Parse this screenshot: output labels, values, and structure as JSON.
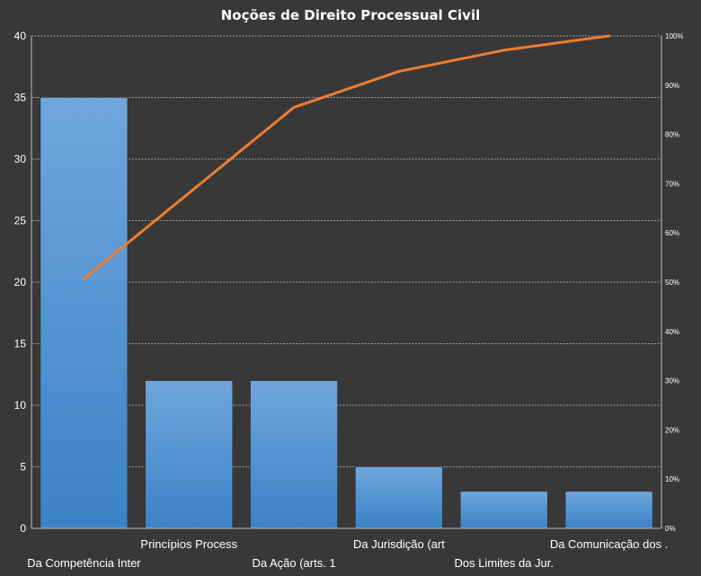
{
  "chart_data": {
    "type": "pareto",
    "title": "Noções de Direito  Processual  Civil",
    "categories": [
      "Da Competência Inter",
      "Princípios Process",
      "Da Ação (arts. 1",
      "Da Jurisdição (art",
      "Dos Limites da Jur.",
      "Da Comunicação dos ."
    ],
    "series": [
      {
        "type": "bar",
        "values": [
          35,
          12,
          12,
          5,
          3,
          3
        ]
      },
      {
        "type": "line",
        "axis": "right",
        "values": [
          50.7,
          68.1,
          85.5,
          92.8,
          97.1,
          100
        ]
      }
    ],
    "ylim": [
      0,
      40
    ],
    "yticks": [
      0,
      5,
      10,
      15,
      20,
      25,
      30,
      35,
      40
    ],
    "y2lim": [
      0,
      100
    ],
    "y2ticks": [
      "0%",
      "10%",
      "20%",
      "30%",
      "40%",
      "50%",
      "60%",
      "70%",
      "80%",
      "90%",
      "100%"
    ],
    "grid": true,
    "colors": {
      "background": "#383838",
      "bar_top": "#6fa6dd",
      "bar_bottom": "#3b82c6",
      "line": "#ed7d31",
      "grid": "#bdbdbd",
      "text": "#ffffff"
    }
  }
}
